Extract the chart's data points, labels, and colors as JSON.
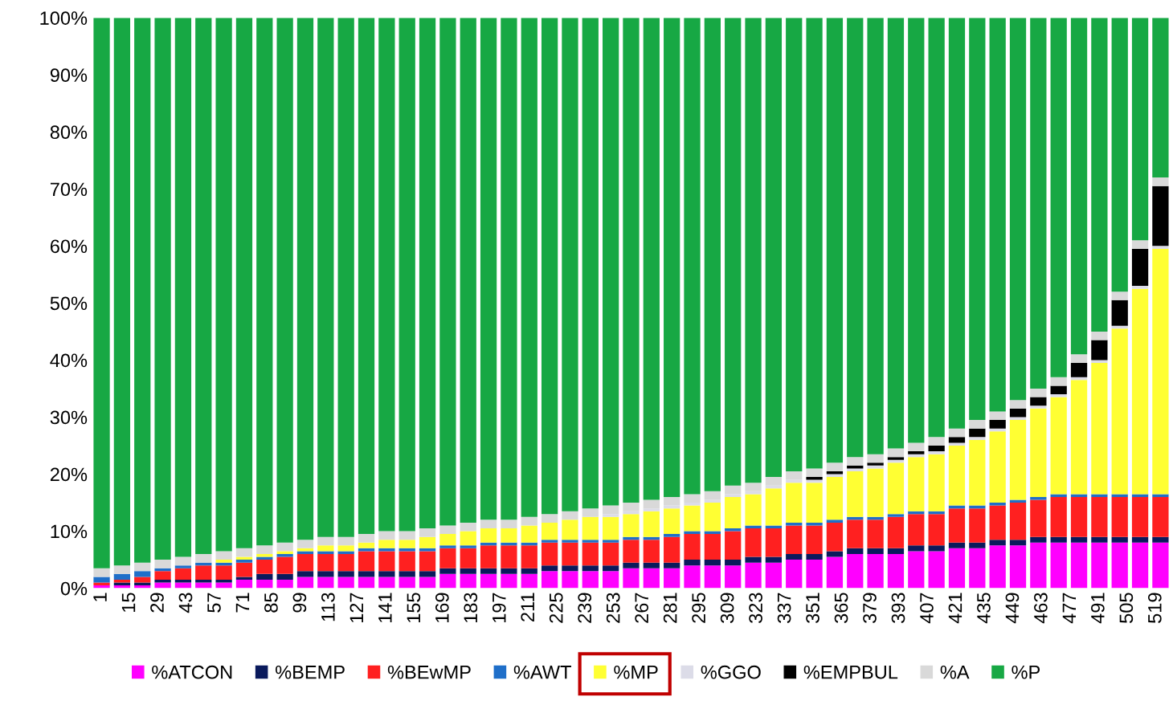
{
  "chart_data": {
    "type": "bar",
    "stacked": true,
    "x": [
      1,
      11,
      21,
      31,
      41,
      51,
      61,
      71,
      81,
      91,
      101,
      111,
      121,
      131,
      141,
      151,
      161,
      171,
      181,
      191,
      201,
      211,
      221,
      231,
      241,
      251,
      261,
      271,
      281,
      291,
      301,
      311,
      321,
      331,
      341,
      351,
      361,
      371,
      381,
      391,
      401,
      411,
      421,
      431,
      441,
      451,
      461,
      471,
      481,
      491,
      501,
      511,
      521
    ],
    "xlim": [
      -4,
      526
    ],
    "xticks": [
      1,
      15,
      29,
      43,
      57,
      71,
      85,
      99,
      113,
      127,
      141,
      155,
      169,
      183,
      197,
      211,
      225,
      239,
      253,
      267,
      281,
      295,
      309,
      323,
      337,
      351,
      365,
      379,
      393,
      407,
      421,
      435,
      449,
      463,
      477,
      491,
      505,
      519
    ],
    "ylim": [
      0,
      100
    ],
    "yticks": [
      {
        "value": 0,
        "label": "0%"
      },
      {
        "value": 10,
        "label": "10%"
      },
      {
        "value": 20,
        "label": "20%"
      },
      {
        "value": 30,
        "label": "30%"
      },
      {
        "value": 40,
        "label": "40%"
      },
      {
        "value": 50,
        "label": "50%"
      },
      {
        "value": 60,
        "label": "60%"
      },
      {
        "value": 70,
        "label": "70%"
      },
      {
        "value": 80,
        "label": "80%"
      },
      {
        "value": 90,
        "label": "90%"
      },
      {
        "value": 100,
        "label": "100%"
      }
    ],
    "grid": false,
    "legend": "bottom",
    "series": [
      {
        "name": "%ATCON",
        "color": "#ff00ff",
        "values": [
          0.5,
          0.5,
          0.5,
          1,
          1,
          1,
          1,
          1.5,
          1.5,
          1.5,
          2,
          2,
          2,
          2,
          2,
          2,
          2,
          2.5,
          2.5,
          2.5,
          2.5,
          2.5,
          3,
          3,
          3,
          3,
          3.5,
          3.5,
          3.5,
          4,
          4,
          4,
          4.5,
          4.5,
          5,
          5,
          5.5,
          6,
          6,
          6,
          6.5,
          6.5,
          7,
          7,
          7.5,
          7.5,
          8,
          8,
          8,
          8,
          8,
          8,
          8
        ]
      },
      {
        "name": "%BEMP",
        "color": "#0a1a5c",
        "values": [
          0,
          0.5,
          0.5,
          0.5,
          0.5,
          0.5,
          0.5,
          0.5,
          1,
          1,
          1,
          1,
          1,
          1,
          1,
          1,
          1,
          1,
          1,
          1,
          1,
          1,
          1,
          1,
          1,
          1,
          1,
          1,
          1,
          1,
          1,
          1,
          1,
          1,
          1,
          1,
          1,
          1,
          1,
          1,
          1,
          1,
          1,
          1,
          1,
          1,
          1,
          1,
          1,
          1,
          1,
          1,
          1
        ]
      },
      {
        "name": "%BEwMP",
        "color": "#ff2020",
        "values": [
          0.5,
          0.5,
          1,
          1.5,
          2,
          2.5,
          2.5,
          2.5,
          2.5,
          3,
          3,
          3,
          3,
          3.5,
          3.5,
          3.5,
          3.5,
          3.5,
          3.5,
          4,
          4,
          4,
          4,
          4,
          4,
          4,
          4,
          4,
          4.5,
          4.5,
          4.5,
          5,
          5,
          5,
          5,
          5,
          5,
          5,
          5,
          5.5,
          5.5,
          5.5,
          6,
          6,
          6,
          6.5,
          6.5,
          7,
          7,
          7,
          7,
          7,
          7
        ]
      },
      {
        "name": "%AWT",
        "color": "#1f6fc9",
        "values": [
          1,
          1,
          1,
          0.5,
          0.5,
          0.5,
          0.5,
          0.5,
          0.5,
          0.5,
          0.5,
          0.5,
          0.5,
          0.5,
          0.5,
          0.5,
          0.5,
          0.5,
          0.5,
          0.5,
          0.5,
          0.5,
          0.5,
          0.5,
          0.5,
          0.5,
          0.5,
          0.5,
          0.5,
          0.5,
          0.5,
          0.5,
          0.5,
          0.5,
          0.5,
          0.5,
          0.5,
          0.5,
          0.5,
          0.5,
          0.5,
          0.5,
          0.5,
          0.5,
          0.5,
          0.5,
          0.5,
          0.5,
          0.5,
          0.5,
          0.5,
          0.5,
          0.5
        ]
      },
      {
        "name": "%MP",
        "color": "#ffff33",
        "values": [
          0,
          0,
          0,
          0,
          0,
          0,
          0.5,
          0.5,
          0.5,
          0.5,
          0.5,
          1,
          1,
          1,
          1.5,
          1.5,
          2,
          2,
          2.5,
          2.5,
          2.5,
          3,
          3,
          3.5,
          4,
          4,
          4,
          4.5,
          4.5,
          4.5,
          5,
          5.5,
          5.5,
          6.5,
          7,
          7,
          7.5,
          8,
          8.5,
          9,
          9.5,
          10,
          10.5,
          11.5,
          12.5,
          14,
          15.5,
          17,
          20,
          23,
          29,
          36,
          43
        ]
      },
      {
        "name": "%GGO",
        "color": "#dcdce8",
        "values": [
          0,
          0,
          0,
          0,
          0,
          0,
          0,
          0,
          0,
          0,
          0,
          0,
          0,
          0,
          0,
          0,
          0,
          0,
          0,
          0,
          0,
          0,
          0,
          0,
          0,
          0.5,
          0.5,
          0.5,
          0.5,
          0.5,
          0.5,
          0.5,
          0.5,
          0.5,
          0.5,
          0.5,
          0.5,
          0.5,
          0.5,
          0.5,
          0.5,
          0.5,
          0.5,
          0.5,
          0.5,
          0.5,
          0.5,
          0.5,
          0.5,
          0.5,
          0.5,
          0.5,
          0.5
        ]
      },
      {
        "name": "%EMPBUL",
        "color": "#000000",
        "values": [
          0,
          0,
          0,
          0,
          0,
          0,
          0,
          0,
          0,
          0,
          0,
          0,
          0,
          0,
          0,
          0,
          0,
          0,
          0,
          0,
          0,
          0,
          0,
          0,
          0,
          0,
          0,
          0,
          0,
          0,
          0,
          0,
          0,
          0,
          0,
          0.5,
          0.5,
          0.5,
          0.5,
          0.5,
          0.5,
          1,
          1,
          1.5,
          1.5,
          1.5,
          1.5,
          1.5,
          2.5,
          3.5,
          4.5,
          6.5,
          10.5
        ]
      },
      {
        "name": "%A",
        "color": "#d9d9d9",
        "values": [
          1.5,
          1.5,
          1.5,
          1.5,
          1.5,
          1.5,
          1.5,
          1.5,
          1.5,
          1.5,
          1.5,
          1.5,
          1.5,
          1.5,
          1.5,
          1.5,
          1.5,
          1.5,
          1.5,
          1.5,
          1.5,
          1.5,
          1.5,
          1.5,
          1.5,
          1.5,
          1.5,
          1.5,
          1.5,
          1.5,
          1.5,
          1.5,
          1.5,
          1.5,
          1.5,
          1.5,
          1.5,
          1.5,
          1.5,
          1.5,
          1.5,
          1.5,
          1.5,
          1.5,
          1.5,
          1.5,
          1.5,
          1.5,
          1.5,
          1.5,
          1.5,
          1.5,
          1.5
        ]
      },
      {
        "name": "%P",
        "color": "#17a844",
        "values": [
          96.5,
          96,
          95.5,
          95,
          94.5,
          94,
          93.5,
          93,
          92.5,
          92,
          91.5,
          91,
          91,
          90.5,
          90,
          90,
          89.5,
          89,
          88.5,
          88,
          88,
          87.5,
          87,
          86.5,
          86,
          85.5,
          85,
          84.5,
          84,
          83.5,
          83,
          82,
          81.5,
          80.5,
          79.5,
          79,
          78,
          77,
          76.5,
          75.5,
          74.5,
          73.5,
          72,
          70.5,
          69,
          67,
          65,
          63,
          59,
          55,
          48,
          39,
          28
        ]
      }
    ]
  }
}
